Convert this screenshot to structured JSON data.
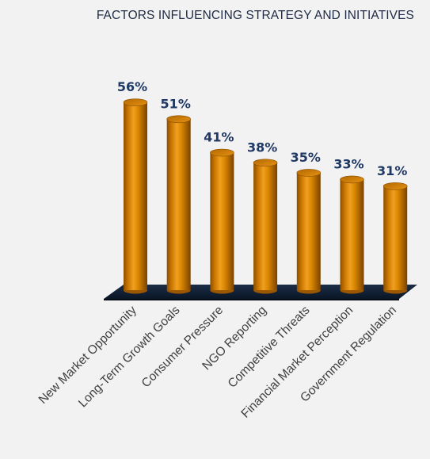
{
  "chart_data": {
    "type": "bar",
    "title": "FACTORS INFLUENCING STRATEGY AND INITIATIVES",
    "categories": [
      "New Market Opportunity",
      "Long-Term Growth Goals",
      "Consumer Pressure",
      "NGO Reporting",
      "Competitive Threats",
      "Financial Market Perception",
      "Government Regulation"
    ],
    "values": [
      56,
      51,
      41,
      38,
      35,
      33,
      31
    ],
    "value_suffix": "%",
    "bar_style": "3d-cylinder",
    "bar_color": "#cc7a00",
    "floor_color": "#0f1f33",
    "label_color": "#1f3864",
    "grid": false,
    "legend": "none"
  }
}
